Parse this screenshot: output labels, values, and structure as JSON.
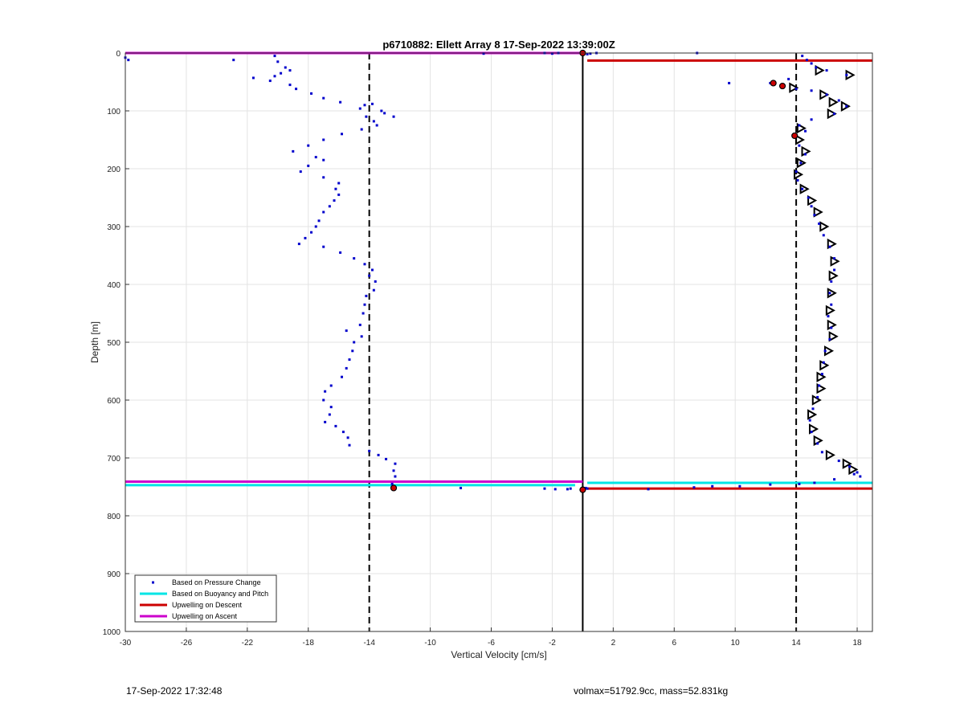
{
  "footer": {
    "timestamp": "17-Sep-2022 17:32:48",
    "float_specs": "volmax=51792.9cc, mass=52.831kg"
  },
  "chart_data": {
    "type": "scatter",
    "title": "p6710882: Ellett Array 8 17-Sep-2022 13:39:00Z",
    "xlabel": "Vertical Velocity [cm/s]",
    "ylabel": "Depth [m]",
    "xlim": [
      -30,
      19
    ],
    "ylim": [
      0,
      1000
    ],
    "y_reversed": true,
    "grid": true,
    "x_ticks": [
      -30,
      -26,
      -22,
      -18,
      -14,
      -10,
      -6,
      -2,
      2,
      6,
      10,
      14,
      18
    ],
    "y_ticks": [
      0,
      100,
      200,
      300,
      400,
      500,
      600,
      700,
      800,
      900,
      1000
    ],
    "legend_position": "bottom-left",
    "legend": [
      {
        "label": "Based on Pressure Change",
        "color": "#0000cc",
        "kind": "dot"
      },
      {
        "label": "Based on Buoyancy and Pitch",
        "color": "#00e5e5",
        "kind": "line"
      },
      {
        "label": "Upwelling on Descent",
        "color": "#cc0000",
        "kind": "line"
      },
      {
        "label": "Upwelling on Ascent",
        "color": "#cc00cc",
        "kind": "line"
      }
    ],
    "reference_lines": [
      {
        "axis": "x",
        "value": 0,
        "style": "solid",
        "color": "#000000"
      },
      {
        "axis": "x",
        "value": -14,
        "style": "dashed",
        "color": "#000000"
      },
      {
        "axis": "x",
        "value": 14,
        "style": "dashed",
        "color": "#000000"
      }
    ],
    "series": [
      {
        "name": "Based on Pressure Change",
        "color": "#0000cc",
        "ascent_points": [
          [
            -30,
            8
          ],
          [
            -29.8,
            12
          ],
          [
            -22.9,
            12
          ],
          [
            -20.2,
            5
          ],
          [
            -20,
            15
          ],
          [
            -19.5,
            25
          ],
          [
            -19.2,
            30
          ],
          [
            -19.8,
            35
          ],
          [
            -20.2,
            40
          ],
          [
            -21.6,
            43
          ],
          [
            -20.5,
            48
          ],
          [
            -19.2,
            55
          ],
          [
            -18.8,
            62
          ],
          [
            -17.8,
            70
          ],
          [
            -17,
            78
          ],
          [
            -15.9,
            85
          ],
          [
            -14.3,
            90
          ],
          [
            -13.8,
            88
          ],
          [
            -14.6,
            96
          ],
          [
            -13.2,
            100
          ],
          [
            -13,
            104
          ],
          [
            -14.2,
            110
          ],
          [
            -12.4,
            110
          ],
          [
            -13.7,
            118
          ],
          [
            -13.5,
            125
          ],
          [
            -14.5,
            132
          ],
          [
            -15.8,
            140
          ],
          [
            -17,
            150
          ],
          [
            -18,
            160
          ],
          [
            -19,
            170
          ],
          [
            -17.5,
            180
          ],
          [
            -17,
            185
          ],
          [
            -18,
            195
          ],
          [
            -18.5,
            205
          ],
          [
            -17,
            215
          ],
          [
            -16,
            225
          ],
          [
            -16.2,
            235
          ],
          [
            -16,
            245
          ],
          [
            -16.3,
            255
          ],
          [
            -16.6,
            265
          ],
          [
            -17,
            275
          ],
          [
            -17.3,
            290
          ],
          [
            -17.5,
            300
          ],
          [
            -17.8,
            310
          ],
          [
            -18.2,
            320
          ],
          [
            -18.6,
            330
          ],
          [
            -17,
            335
          ],
          [
            -15.9,
            345
          ],
          [
            -15,
            355
          ],
          [
            -14.3,
            365
          ],
          [
            -13.8,
            375
          ],
          [
            -14,
            385
          ],
          [
            -13.6,
            395
          ],
          [
            -13.7,
            410
          ],
          [
            -14.2,
            420
          ],
          [
            -14.3,
            435
          ],
          [
            -14.4,
            450
          ],
          [
            -14.6,
            470
          ],
          [
            -15.5,
            480
          ],
          [
            -14.5,
            490
          ],
          [
            -15,
            500
          ],
          [
            -15.1,
            515
          ],
          [
            -15.3,
            530
          ],
          [
            -15.5,
            545
          ],
          [
            -15.8,
            560
          ],
          [
            -16.5,
            575
          ],
          [
            -16.9,
            585
          ],
          [
            -17,
            600
          ],
          [
            -16.5,
            612
          ],
          [
            -16.6,
            625
          ],
          [
            -16.9,
            638
          ],
          [
            -16.2,
            645
          ],
          [
            -15.7,
            655
          ],
          [
            -15.4,
            665
          ],
          [
            -15.3,
            678
          ],
          [
            -14,
            688
          ],
          [
            -13.4,
            695
          ],
          [
            -12.9,
            702
          ],
          [
            -12.3,
            710
          ],
          [
            -12.4,
            722
          ],
          [
            -12.3,
            732
          ],
          [
            -12.5,
            745
          ],
          [
            -12.5,
            750
          ],
          [
            -12.5,
            752
          ]
        ],
        "descent_points": [
          [
            14.4,
            5
          ],
          [
            14.7,
            12
          ],
          [
            15,
            18
          ],
          [
            15.3,
            25
          ],
          [
            16,
            30
          ],
          [
            17.3,
            38
          ],
          [
            13.5,
            45
          ],
          [
            12.3,
            52
          ],
          [
            13.1,
            57
          ],
          [
            14,
            62
          ],
          [
            15,
            65
          ],
          [
            16,
            72
          ],
          [
            16.8,
            82
          ],
          [
            17.3,
            92
          ],
          [
            16.5,
            105
          ],
          [
            15,
            115
          ],
          [
            14.2,
            125
          ],
          [
            14.6,
            135
          ],
          [
            13.9,
            145
          ],
          [
            14.2,
            160
          ],
          [
            14.6,
            175
          ],
          [
            14.3,
            190
          ],
          [
            14,
            205
          ],
          [
            14.1,
            220
          ],
          [
            14.4,
            235
          ],
          [
            14.8,
            250
          ],
          [
            15,
            265
          ],
          [
            15.2,
            280
          ],
          [
            15.5,
            295
          ],
          [
            15.8,
            315
          ],
          [
            16.2,
            335
          ],
          [
            16.5,
            355
          ],
          [
            16.5,
            375
          ],
          [
            16.3,
            395
          ],
          [
            16.2,
            415
          ],
          [
            16.3,
            435
          ],
          [
            16.1,
            455
          ],
          [
            16.3,
            475
          ],
          [
            16.2,
            495
          ],
          [
            15.9,
            515
          ],
          [
            15.8,
            535
          ],
          [
            15.7,
            555
          ],
          [
            15.5,
            575
          ],
          [
            15.4,
            595
          ],
          [
            15.1,
            615
          ],
          [
            14.9,
            635
          ],
          [
            15,
            655
          ],
          [
            15.4,
            675
          ],
          [
            15.7,
            690
          ],
          [
            16.8,
            705
          ],
          [
            17.5,
            715
          ],
          [
            18,
            725
          ],
          [
            18.2,
            732
          ],
          [
            0.3,
            753
          ]
        ],
        "surface_points": [
          [
            0,
            0
          ],
          [
            -2.5,
            0
          ],
          [
            -2,
            1
          ],
          [
            -1.6,
            0
          ],
          [
            -6.5,
            1
          ],
          [
            0.5,
            1
          ],
          [
            0.9,
            0
          ],
          [
            7.5,
            0
          ],
          [
            9.6,
            52
          ],
          [
            0.3,
            2
          ]
        ],
        "bottom_points": [
          [
            -8,
            752
          ],
          [
            -2.5,
            753
          ],
          [
            -1.8,
            754
          ],
          [
            -1,
            754
          ],
          [
            -0.8,
            753
          ],
          [
            0,
            755
          ],
          [
            0.2,
            752
          ],
          [
            4.3,
            754
          ],
          [
            7.3,
            751
          ],
          [
            8.5,
            749
          ],
          [
            10.3,
            749
          ],
          [
            12.3,
            746
          ],
          [
            14.2,
            745
          ],
          [
            15.2,
            743
          ],
          [
            16.5,
            737
          ],
          [
            17.8,
            728
          ]
        ]
      },
      {
        "name": "Based on Buoyancy and Pitch",
        "color": "#00e5e5",
        "segments": [
          {
            "y": 747,
            "x_from": -30,
            "x_to": -0.5
          },
          {
            "y": 743,
            "x_from": 0.3,
            "x_to": 19
          }
        ]
      },
      {
        "name": "Upwelling on Descent",
        "color": "#cc0000",
        "segments": [
          {
            "y": 13,
            "x_from": 0.3,
            "x_to": 19
          },
          {
            "y": 753,
            "x_from": 0.3,
            "x_to": 19
          }
        ]
      },
      {
        "name": "Upwelling on Ascent",
        "color": "#cc00cc",
        "segments": [
          {
            "y": 0,
            "x_from": -30,
            "x_to": 0
          },
          {
            "y": 741,
            "x_from": -30,
            "x_to": 0
          }
        ]
      }
    ],
    "triangle_markers": [
      [
        15.5,
        30
      ],
      [
        17.5,
        38
      ],
      [
        13.8,
        60
      ],
      [
        15.8,
        72
      ],
      [
        16.4,
        85
      ],
      [
        17.2,
        92
      ],
      [
        16.3,
        105
      ],
      [
        14.3,
        130
      ],
      [
        14.2,
        150
      ],
      [
        14.6,
        170
      ],
      [
        14.3,
        190
      ],
      [
        14.1,
        210
      ],
      [
        14.5,
        235
      ],
      [
        15,
        255
      ],
      [
        15.4,
        275
      ],
      [
        15.8,
        300
      ],
      [
        16.3,
        330
      ],
      [
        16.5,
        360
      ],
      [
        16.4,
        385
      ],
      [
        16.3,
        415
      ],
      [
        16.2,
        445
      ],
      [
        16.3,
        470
      ],
      [
        16.4,
        490
      ],
      [
        16.1,
        515
      ],
      [
        15.8,
        540
      ],
      [
        15.6,
        560
      ],
      [
        15.6,
        580
      ],
      [
        15.3,
        600
      ],
      [
        15,
        625
      ],
      [
        15.1,
        650
      ],
      [
        15.4,
        670
      ],
      [
        16.2,
        695
      ],
      [
        17.3,
        710
      ],
      [
        17.7,
        720
      ]
    ],
    "red_markers": [
      [
        12.5,
        52
      ],
      [
        13.1,
        57
      ],
      [
        13.9,
        143
      ],
      [
        0,
        0
      ],
      [
        0,
        755
      ],
      [
        -12.4,
        752
      ]
    ]
  }
}
